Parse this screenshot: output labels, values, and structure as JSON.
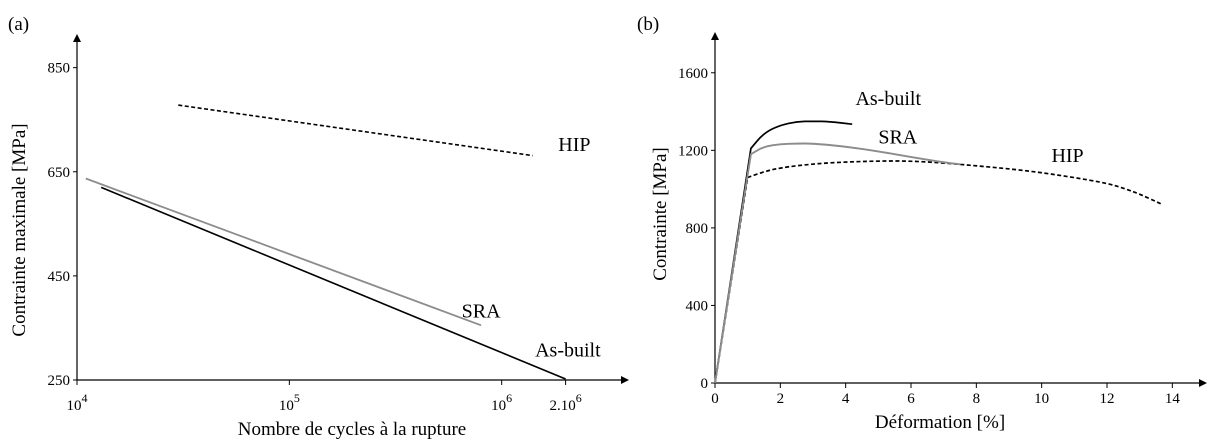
{
  "chart_data": [
    {
      "panel_label": "(a)",
      "type": "line",
      "xscale": "log",
      "xlabel": "Nombre de cycles à la rupture",
      "ylabel": "Contrainte maximale [MPa]",
      "xlim": [
        10000,
        3000000
      ],
      "ylim": [
        250,
        930
      ],
      "x_ticks": [
        {
          "value": 10000,
          "base": "10",
          "exp": "4"
        },
        {
          "value": 100000,
          "base": "10",
          "exp": "5"
        },
        {
          "value": 1000000,
          "base": "10",
          "exp": "6"
        },
        {
          "value": 2000000,
          "base": "2.10",
          "exp": "6"
        }
      ],
      "y_ticks": [
        250,
        450,
        650,
        850
      ],
      "series": [
        {
          "name": "HIP",
          "style": "dashed",
          "color": "#000000",
          "x": [
            30000,
            1400000
          ],
          "y": [
            778,
            681
          ]
        },
        {
          "name": "SRA",
          "style": "solid",
          "color": "#8c8c8c",
          "x": [
            11000,
            800000
          ],
          "y": [
            637,
            355
          ]
        },
        {
          "name": "As-built",
          "style": "solid",
          "color": "#000000",
          "x": [
            13000,
            2000000
          ],
          "y": [
            620,
            252
          ]
        }
      ],
      "annotations": [
        {
          "text": "HIP",
          "x": 2200000,
          "y": 690
        },
        {
          "text": "SRA",
          "x": 800000,
          "y": 370
        },
        {
          "text": "As-built",
          "x": 2050000,
          "y": 295
        }
      ]
    },
    {
      "panel_label": "(b)",
      "type": "line",
      "xlabel": "Déformation [%]",
      "ylabel": "Contrainte [MPa]",
      "xlim": [
        0,
        15
      ],
      "ylim": [
        0,
        1800
      ],
      "x_ticks": [
        0,
        2,
        4,
        6,
        8,
        10,
        12,
        14
      ],
      "y_ticks": [
        0,
        400,
        800,
        1200,
        1600
      ],
      "series": [
        {
          "name": "As-built",
          "style": "solid",
          "color": "#000000",
          "x": [
            0,
            1.1,
            1.5,
            2.0,
            2.5,
            3.0,
            3.5,
            4.2
          ],
          "y": [
            0,
            1210,
            1290,
            1330,
            1348,
            1350,
            1348,
            1335
          ]
        },
        {
          "name": "SRA",
          "style": "solid",
          "color": "#8c8c8c",
          "x": [
            0,
            1.1,
            1.5,
            2.0,
            2.5,
            3.0,
            4.0,
            5.0,
            6.0,
            7.0,
            7.5
          ],
          "y": [
            0,
            1180,
            1220,
            1232,
            1235,
            1235,
            1220,
            1195,
            1165,
            1138,
            1128
          ]
        },
        {
          "name": "HIP",
          "style": "dashed",
          "color": "#000000",
          "x": [
            0,
            1.0,
            1.5,
            2.0,
            3.0,
            4.0,
            5.0,
            6.0,
            7.0,
            8.0,
            9.0,
            10.0,
            11.0,
            12.0,
            12.5,
            13.0,
            13.7
          ],
          "y": [
            0,
            1060,
            1090,
            1110,
            1130,
            1140,
            1145,
            1145,
            1135,
            1120,
            1105,
            1085,
            1060,
            1030,
            1005,
            975,
            920
          ]
        }
      ],
      "annotations": [
        {
          "text": "As-built",
          "x": 4.3,
          "y": 1435
        },
        {
          "text": "SRA",
          "x": 5.0,
          "y": 1235
        },
        {
          "text": "HIP",
          "x": 10.3,
          "y": 1140
        }
      ]
    }
  ]
}
